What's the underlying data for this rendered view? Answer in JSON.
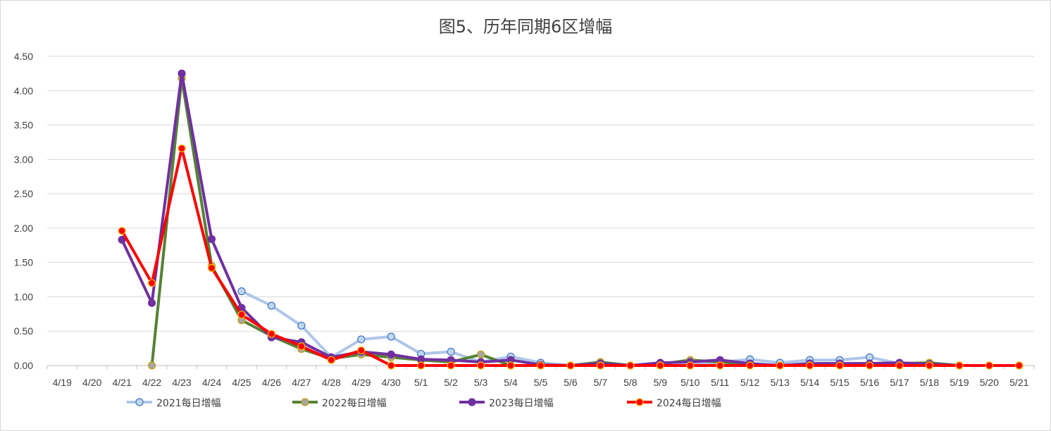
{
  "chart_data": {
    "type": "line",
    "title": "图5、历年同期6区增幅",
    "xlabel": "",
    "ylabel": "",
    "ylim": [
      0,
      4.5
    ],
    "yticks": [
      "0.00",
      "0.50",
      "1.00",
      "1.50",
      "2.00",
      "2.50",
      "3.00",
      "3.50",
      "4.00",
      "4.50"
    ],
    "grid": true,
    "legend_position": "bottom",
    "categories": [
      "4/19",
      "4/20",
      "4/21",
      "4/22",
      "4/23",
      "4/24",
      "4/25",
      "4/26",
      "4/27",
      "4/28",
      "4/29",
      "4/30",
      "5/1",
      "5/2",
      "5/3",
      "5/4",
      "5/5",
      "5/6",
      "5/7",
      "5/8",
      "5/9",
      "5/10",
      "5/11",
      "5/12",
      "5/13",
      "5/14",
      "5/15",
      "5/16",
      "5/17",
      "5/18",
      "5/19",
      "5/20",
      "5/21"
    ],
    "series": [
      {
        "name": "2021每日增幅",
        "line_color": "#aec6e8",
        "marker_fill": "#bdd7ee",
        "marker_stroke": "#4472c4",
        "line_width": 4,
        "values": [
          null,
          null,
          null,
          null,
          null,
          null,
          1.08,
          0.87,
          0.58,
          0.12,
          0.38,
          0.42,
          0.17,
          0.2,
          0.05,
          0.13,
          0.04,
          0.0,
          0.0,
          0.0,
          0.0,
          0.0,
          0.05,
          0.09,
          0.04,
          0.08,
          0.08,
          0.12,
          0.03,
          0.02,
          0.0,
          0.0,
          0.0
        ]
      },
      {
        "name": "2022每日增幅",
        "line_color": "#548235",
        "marker_fill": "#a5a5a5",
        "marker_stroke": "#c5a000",
        "line_width": 4,
        "values": [
          null,
          null,
          null,
          0.0,
          4.18,
          1.45,
          0.66,
          0.43,
          0.24,
          0.1,
          0.16,
          0.12,
          0.08,
          0.05,
          0.16,
          0.0,
          0.0,
          0.0,
          0.05,
          0.0,
          0.02,
          0.08,
          0.05,
          0.02,
          0.0,
          0.02,
          0.02,
          0.02,
          0.03,
          0.04,
          0.0,
          0.0,
          0.0
        ]
      },
      {
        "name": "2023每日增幅",
        "line_color": "#7030a0",
        "marker_fill": "#7030a0",
        "marker_stroke": "#7030a0",
        "line_width": 4,
        "values": [
          null,
          null,
          1.83,
          0.91,
          4.25,
          1.84,
          0.84,
          0.41,
          0.34,
          0.12,
          0.2,
          0.16,
          0.09,
          0.08,
          0.05,
          0.08,
          0.01,
          0.0,
          0.03,
          0.0,
          0.04,
          0.05,
          0.08,
          0.03,
          0.0,
          0.03,
          0.03,
          0.03,
          0.04,
          0.02,
          0.0,
          0.0,
          0.0
        ]
      },
      {
        "name": "2024每日增幅",
        "line_color": "#ff0000",
        "marker_fill": "#ff0000",
        "marker_stroke": "#ffc000",
        "line_width": 4,
        "values": [
          null,
          null,
          1.96,
          1.2,
          3.16,
          1.42,
          0.74,
          0.46,
          0.28,
          0.08,
          0.22,
          0.0,
          0.0,
          0.0,
          0.0,
          0.0,
          0.0,
          0.0,
          0.0,
          0.0,
          0.0,
          0.0,
          0.0,
          0.0,
          0.0,
          0.0,
          0.0,
          0.0,
          0.0,
          0.0,
          0.0,
          0.0,
          0.0
        ]
      }
    ]
  }
}
